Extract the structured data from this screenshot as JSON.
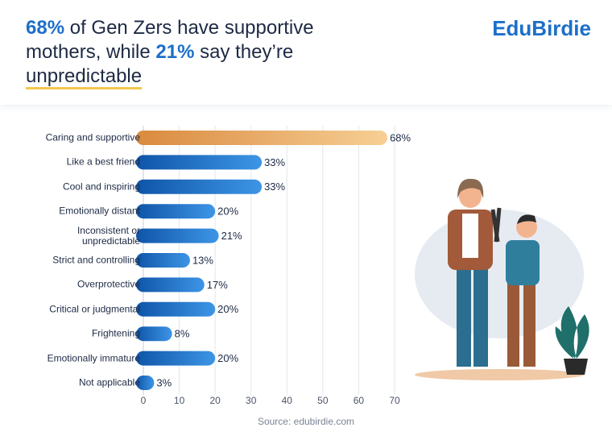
{
  "header": {
    "title_segments": [
      "68%",
      "of Gen Zers have supportive mothers, while",
      "21%",
      "say they’re",
      "unpredictable"
    ],
    "logo": "EduBirdie"
  },
  "chart_data": {
    "type": "hbar",
    "categories": [
      "Caring and supportive",
      "Like a best friend",
      "Cool and inspiring",
      "Emotionally distant",
      "Inconsistent or\nunpredictable",
      "Strict and controlling",
      "Overprotective",
      "Critical or judgmental",
      "Frightening",
      "Emotionally immature",
      "Not applicable"
    ],
    "values": [
      68,
      33,
      33,
      20,
      21,
      13,
      17,
      20,
      8,
      20,
      3
    ],
    "value_labels": [
      "68%",
      "33%",
      "33%",
      "20%",
      "21%",
      "13%",
      "17%",
      "20%",
      "8%",
      "20%",
      "3%"
    ],
    "colors": [
      "#eea45c",
      "#2573cc",
      "#2573cc",
      "#2573cc",
      "#2573cc",
      "#2573cc",
      "#2573cc",
      "#2573cc",
      "#2573cc",
      "#2573cc",
      "#2573cc"
    ],
    "xlim": [
      0,
      70
    ],
    "xticks": [
      0,
      10,
      20,
      30,
      40,
      50,
      60,
      70
    ],
    "grid": true,
    "source": "Source: edubirdie.com"
  }
}
